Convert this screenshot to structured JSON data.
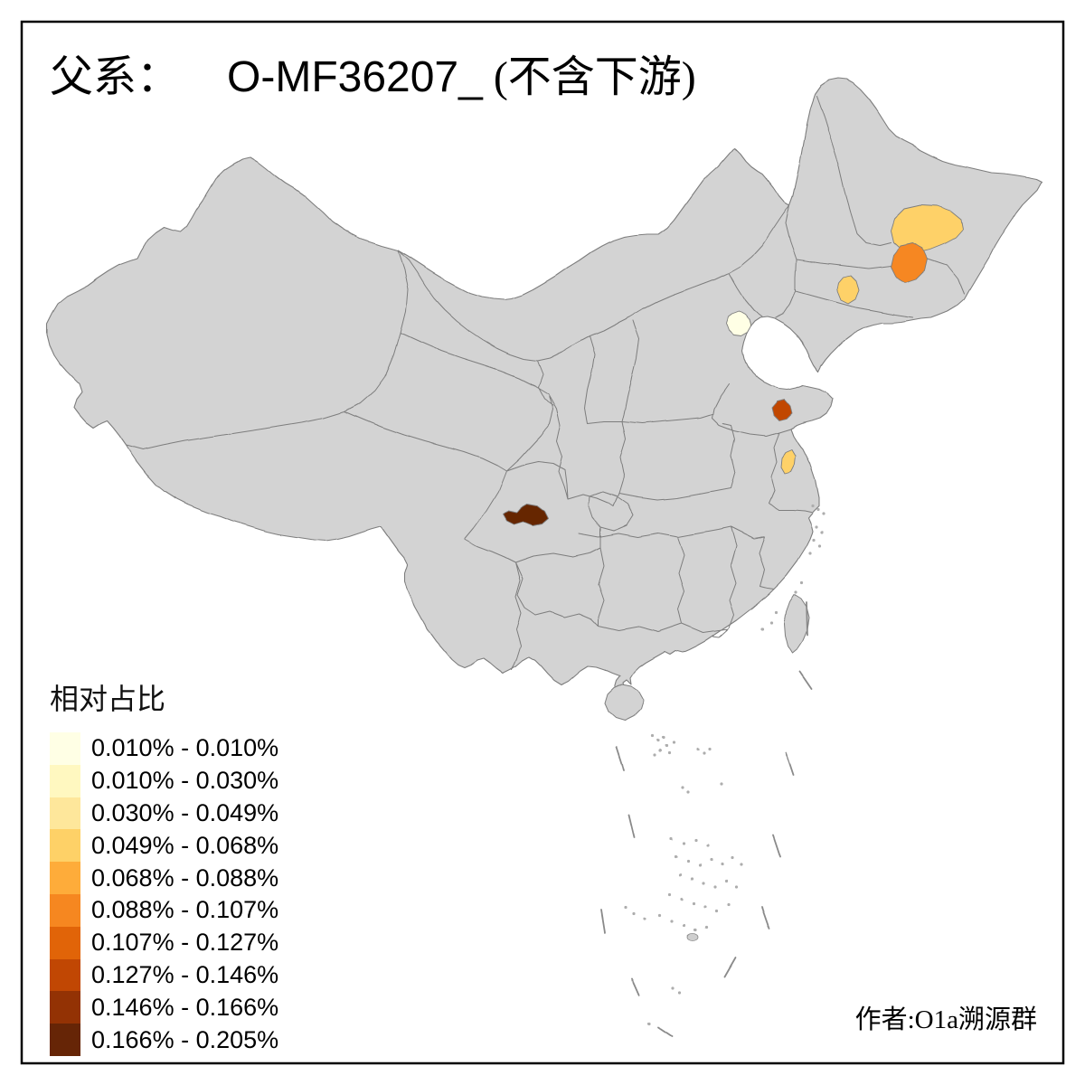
{
  "title": {
    "prefix": "父系：",
    "code": "O-MF36207_",
    "suffix": "(不含下游)"
  },
  "legend": {
    "title": "相对占比",
    "items": [
      {
        "label": "0.010% - 0.010%",
        "color": "#FFFFE5"
      },
      {
        "label": "0.010% - 0.030%",
        "color": "#FFF8C0"
      },
      {
        "label": "0.030% - 0.049%",
        "color": "#FEE79B"
      },
      {
        "label": "0.049% - 0.068%",
        "color": "#FED167"
      },
      {
        "label": "0.068% - 0.088%",
        "color": "#FEAC3A"
      },
      {
        "label": "0.088% - 0.107%",
        "color": "#F68720"
      },
      {
        "label": "0.107% - 0.127%",
        "color": "#E16408"
      },
      {
        "label": "0.127% - 0.146%",
        "color": "#C14703"
      },
      {
        "label": "0.146% - 0.166%",
        "color": "#933204"
      },
      {
        "label": "0.166% - 0.205%",
        "color": "#662506"
      }
    ]
  },
  "credit": {
    "text": "作者:O1a溯源群"
  },
  "map": {
    "land_color": "#D3D3D3",
    "border_color": "#7D7D7D",
    "frame_color": "#000000",
    "sea_color": "#FFFFFF",
    "regions": [
      {
        "name": "beijing",
        "category": 0
      },
      {
        "name": "northeast-heilongjiang",
        "category": 3
      },
      {
        "name": "northeast-jilin",
        "category": 5
      },
      {
        "name": "northeast-liaoning",
        "category": 3
      },
      {
        "name": "shandong",
        "category": 7
      },
      {
        "name": "jiangsu",
        "category": 3
      },
      {
        "name": "sichuan",
        "category": 9
      }
    ]
  },
  "chart_data": {
    "type": "choropleth",
    "title": "父系： O-MF36207_ (不含下游)",
    "legend_title": "相对占比",
    "bins": [
      "0.010% - 0.010%",
      "0.010% - 0.030%",
      "0.030% - 0.049%",
      "0.049% - 0.068%",
      "0.068% - 0.088%",
      "0.088% - 0.107%",
      "0.107% - 0.127%",
      "0.127% - 0.146%",
      "0.146% - 0.166%",
      "0.166% - 0.205%"
    ],
    "regions": [
      {
        "name": "beijing",
        "bin": "0.010% - 0.010%"
      },
      {
        "name": "northeast-heilongjiang",
        "bin": "0.049% - 0.068%"
      },
      {
        "name": "northeast-jilin",
        "bin": "0.088% - 0.107%"
      },
      {
        "name": "northeast-liaoning",
        "bin": "0.049% - 0.068%"
      },
      {
        "name": "shandong",
        "bin": "0.127% - 0.146%"
      },
      {
        "name": "jiangsu",
        "bin": "0.049% - 0.068%"
      },
      {
        "name": "sichuan",
        "bin": "0.166% - 0.205%"
      }
    ]
  }
}
